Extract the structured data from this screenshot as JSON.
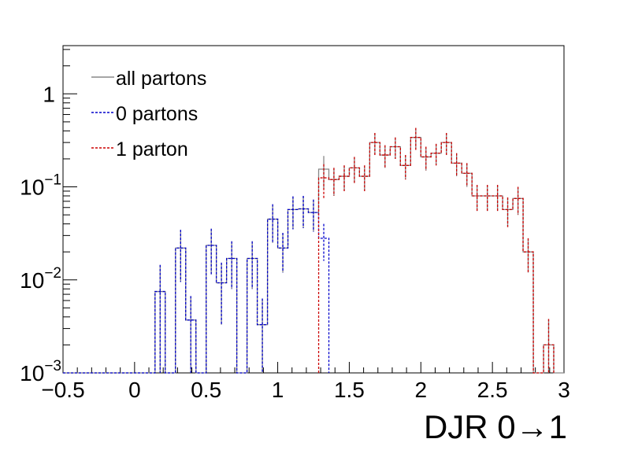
{
  "chart_data": {
    "type": "histogram-step",
    "xlabel": "DJR 0→1",
    "ylabel": "",
    "xlim": [
      -0.5,
      3.0
    ],
    "ylim": [
      0.001,
      3.3
    ],
    "yscale": "log",
    "grid": false,
    "legend_position": "top-left",
    "bin_width": 0.0714,
    "x_ticks": [
      {
        "value": -0.5,
        "label": "−0.5"
      },
      {
        "value": 0,
        "label": "0"
      },
      {
        "value": 0.5,
        "label": "0.5"
      },
      {
        "value": 1,
        "label": "1"
      },
      {
        "value": 1.5,
        "label": "1.5"
      },
      {
        "value": 2,
        "label": "2"
      },
      {
        "value": 2.5,
        "label": "2.5"
      },
      {
        "value": 3,
        "label": "3"
      }
    ],
    "y_ticks": [
      {
        "value": 0.001,
        "base": "10",
        "exp": "−3"
      },
      {
        "value": 0.01,
        "base": "10",
        "exp": "−2"
      },
      {
        "value": 0.1,
        "base": "10",
        "exp": "−1"
      },
      {
        "value": 1,
        "base": "1",
        "exp": ""
      }
    ],
    "series": [
      {
        "name": "all partons",
        "color": "#888888",
        "dash": "solid",
        "bins": [
          [
            0.143,
            0.0075,
            0.007
          ],
          [
            0.214,
            0.0,
            0
          ],
          [
            0.286,
            0.022,
            0.0125
          ],
          [
            0.357,
            0.0037,
            0.003
          ],
          [
            0.429,
            0.0,
            0
          ],
          [
            0.5,
            0.0235,
            0.012
          ],
          [
            0.571,
            0.0093,
            0.006
          ],
          [
            0.643,
            0.017,
            0.009
          ],
          [
            0.714,
            0.001,
            0
          ],
          [
            0.786,
            0.017,
            0.009
          ],
          [
            0.857,
            0.0033,
            0.003
          ],
          [
            0.929,
            0.045,
            0.02
          ],
          [
            1.0,
            0.022,
            0.01
          ],
          [
            1.071,
            0.057,
            0.022
          ],
          [
            1.143,
            0.058,
            0.022
          ],
          [
            1.214,
            0.053,
            0.02
          ],
          [
            1.286,
            0.155,
            0.06
          ],
          [
            1.357,
            0.12,
            0.04
          ],
          [
            1.429,
            0.13,
            0.04
          ],
          [
            1.5,
            0.16,
            0.05
          ],
          [
            1.571,
            0.13,
            0.04
          ],
          [
            1.643,
            0.3,
            0.08
          ],
          [
            1.714,
            0.22,
            0.06
          ],
          [
            1.786,
            0.27,
            0.07
          ],
          [
            1.857,
            0.17,
            0.05
          ],
          [
            1.929,
            0.34,
            0.09
          ],
          [
            2.0,
            0.21,
            0.06
          ],
          [
            2.071,
            0.23,
            0.06
          ],
          [
            2.143,
            0.3,
            0.08
          ],
          [
            2.214,
            0.18,
            0.05
          ],
          [
            2.286,
            0.14,
            0.04
          ],
          [
            2.357,
            0.08,
            0.025
          ],
          [
            2.429,
            0.08,
            0.025
          ],
          [
            2.5,
            0.08,
            0.025
          ],
          [
            2.571,
            0.057,
            0.02
          ],
          [
            2.643,
            0.075,
            0.025
          ],
          [
            2.714,
            0.02,
            0.008
          ],
          [
            2.786,
            0.0,
            0
          ],
          [
            2.857,
            0.002,
            0.0018
          ]
        ]
      },
      {
        "name": "0 partons",
        "color": "#0000cc",
        "dash": "dotted",
        "bins": [
          [
            0.143,
            0.0075,
            0.007
          ],
          [
            0.214,
            0.0,
            0
          ],
          [
            0.286,
            0.022,
            0.0125
          ],
          [
            0.357,
            0.0037,
            0.003
          ],
          [
            0.429,
            0.0,
            0
          ],
          [
            0.5,
            0.0235,
            0.012
          ],
          [
            0.571,
            0.0093,
            0.006
          ],
          [
            0.643,
            0.017,
            0.009
          ],
          [
            0.714,
            0.001,
            0
          ],
          [
            0.786,
            0.017,
            0.009
          ],
          [
            0.857,
            0.0033,
            0.003
          ],
          [
            0.929,
            0.045,
            0.02
          ],
          [
            1.0,
            0.022,
            0.01
          ],
          [
            1.071,
            0.057,
            0.022
          ],
          [
            1.143,
            0.058,
            0.022
          ],
          [
            1.214,
            0.053,
            0.02
          ],
          [
            1.286,
            0.028,
            0.012
          ]
        ]
      },
      {
        "name": "1 parton",
        "color": "#cc0000",
        "dash": "dotted",
        "bins": [
          [
            1.286,
            0.125,
            0.05
          ],
          [
            1.357,
            0.12,
            0.04
          ],
          [
            1.429,
            0.13,
            0.04
          ],
          [
            1.5,
            0.16,
            0.05
          ],
          [
            1.571,
            0.13,
            0.04
          ],
          [
            1.643,
            0.3,
            0.08
          ],
          [
            1.714,
            0.22,
            0.06
          ],
          [
            1.786,
            0.27,
            0.07
          ],
          [
            1.857,
            0.17,
            0.05
          ],
          [
            1.929,
            0.34,
            0.09
          ],
          [
            2.0,
            0.21,
            0.06
          ],
          [
            2.071,
            0.23,
            0.06
          ],
          [
            2.143,
            0.3,
            0.08
          ],
          [
            2.214,
            0.18,
            0.05
          ],
          [
            2.286,
            0.14,
            0.04
          ],
          [
            2.357,
            0.08,
            0.025
          ],
          [
            2.429,
            0.08,
            0.025
          ],
          [
            2.5,
            0.08,
            0.025
          ],
          [
            2.571,
            0.057,
            0.02
          ],
          [
            2.643,
            0.075,
            0.025
          ],
          [
            2.714,
            0.02,
            0.008
          ],
          [
            2.786,
            0.0,
            0
          ],
          [
            2.857,
            0.002,
            0.0018
          ]
        ]
      }
    ]
  }
}
